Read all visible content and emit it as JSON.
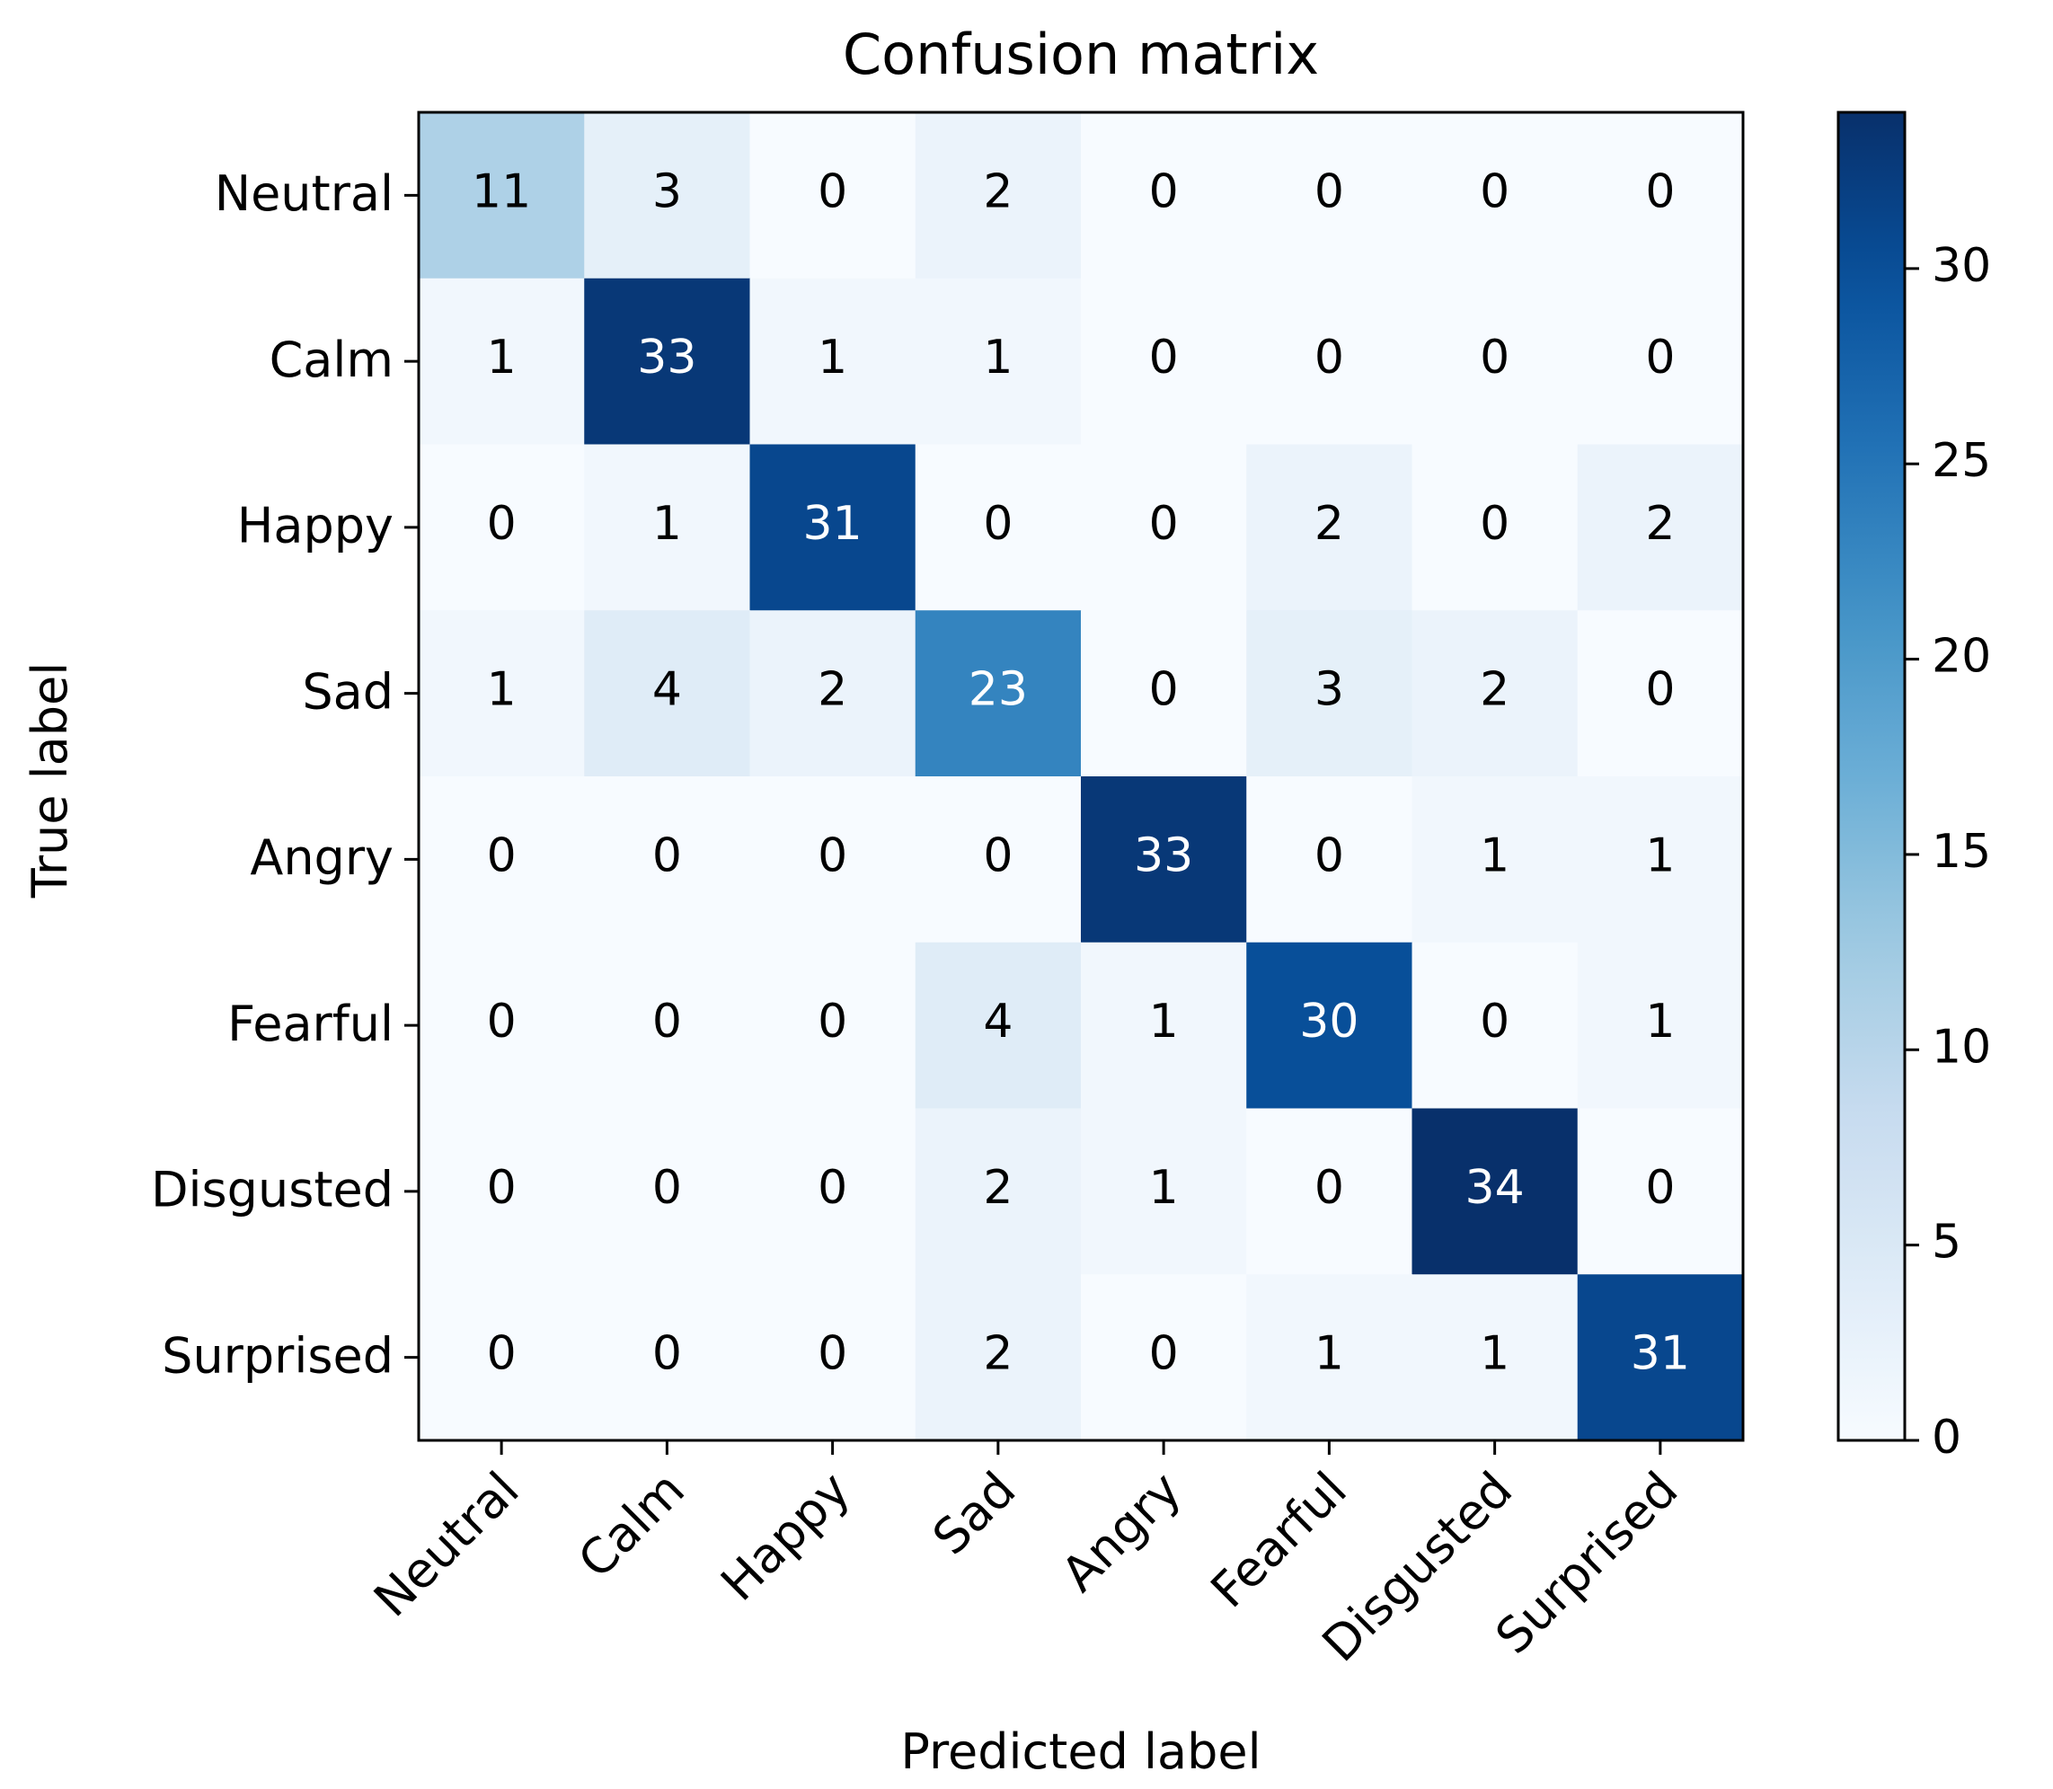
{
  "chart_data": {
    "type": "heatmap",
    "title": "Confusion matrix",
    "xlabel": "Predicted label",
    "ylabel": "True label",
    "x_categories": [
      "Neutral",
      "Calm",
      "Happy",
      "Sad",
      "Angry",
      "Fearful",
      "Disgusted",
      "Surprised"
    ],
    "y_categories": [
      "Neutral",
      "Calm",
      "Happy",
      "Sad",
      "Angry",
      "Fearful",
      "Disgusted",
      "Surprised"
    ],
    "values": [
      [
        11,
        3,
        0,
        2,
        0,
        0,
        0,
        0
      ],
      [
        1,
        33,
        1,
        1,
        0,
        0,
        0,
        0
      ],
      [
        0,
        1,
        31,
        0,
        0,
        2,
        0,
        2
      ],
      [
        1,
        4,
        2,
        23,
        0,
        3,
        2,
        0
      ],
      [
        0,
        0,
        0,
        0,
        33,
        0,
        1,
        1
      ],
      [
        0,
        0,
        0,
        4,
        1,
        30,
        0,
        1
      ],
      [
        0,
        0,
        0,
        2,
        1,
        0,
        34,
        0
      ],
      [
        0,
        0,
        0,
        2,
        0,
        1,
        1,
        31
      ]
    ],
    "colorbar": {
      "colormap": "Blues",
      "range": [
        0,
        34
      ],
      "ticks": [
        0,
        5,
        10,
        15,
        20,
        25,
        30
      ]
    },
    "grid": false
  }
}
